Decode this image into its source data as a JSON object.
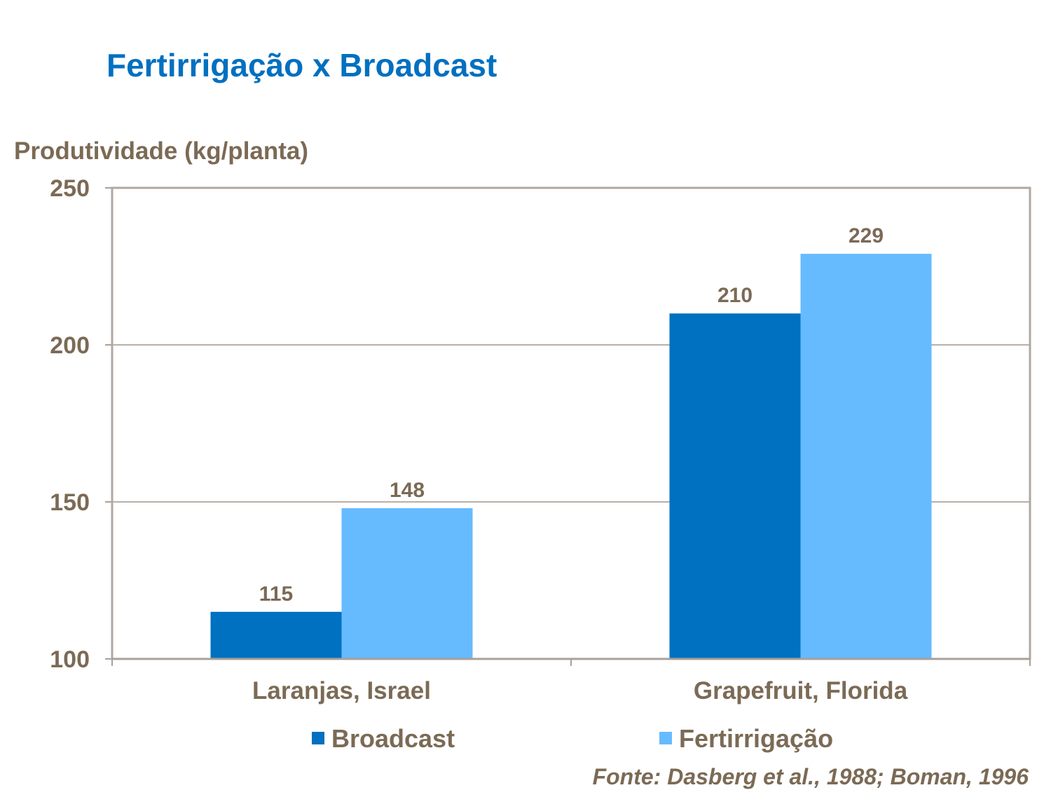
{
  "title": "Fertirrigação x Broadcast",
  "source": "Fonte: Dasberg et al., 1988; Boman, 1996",
  "chart_data": {
    "type": "bar",
    "title": "Fertirrigação x Broadcast",
    "ylabel": "Produtividade (kg/planta)",
    "xlabel": "",
    "ylim": [
      100,
      250
    ],
    "yticks": [
      100,
      150,
      200,
      250
    ],
    "grid": true,
    "legend_position": "bottom",
    "categories": [
      "Laranjas, Israel",
      "Grapefruit, Florida"
    ],
    "series": [
      {
        "name": "Broadcast",
        "values": [
          115,
          210
        ],
        "color": "#0070C0"
      },
      {
        "name": "Fertirrigação",
        "values": [
          148,
          229
        ],
        "color": "#66BBFF"
      }
    ]
  }
}
